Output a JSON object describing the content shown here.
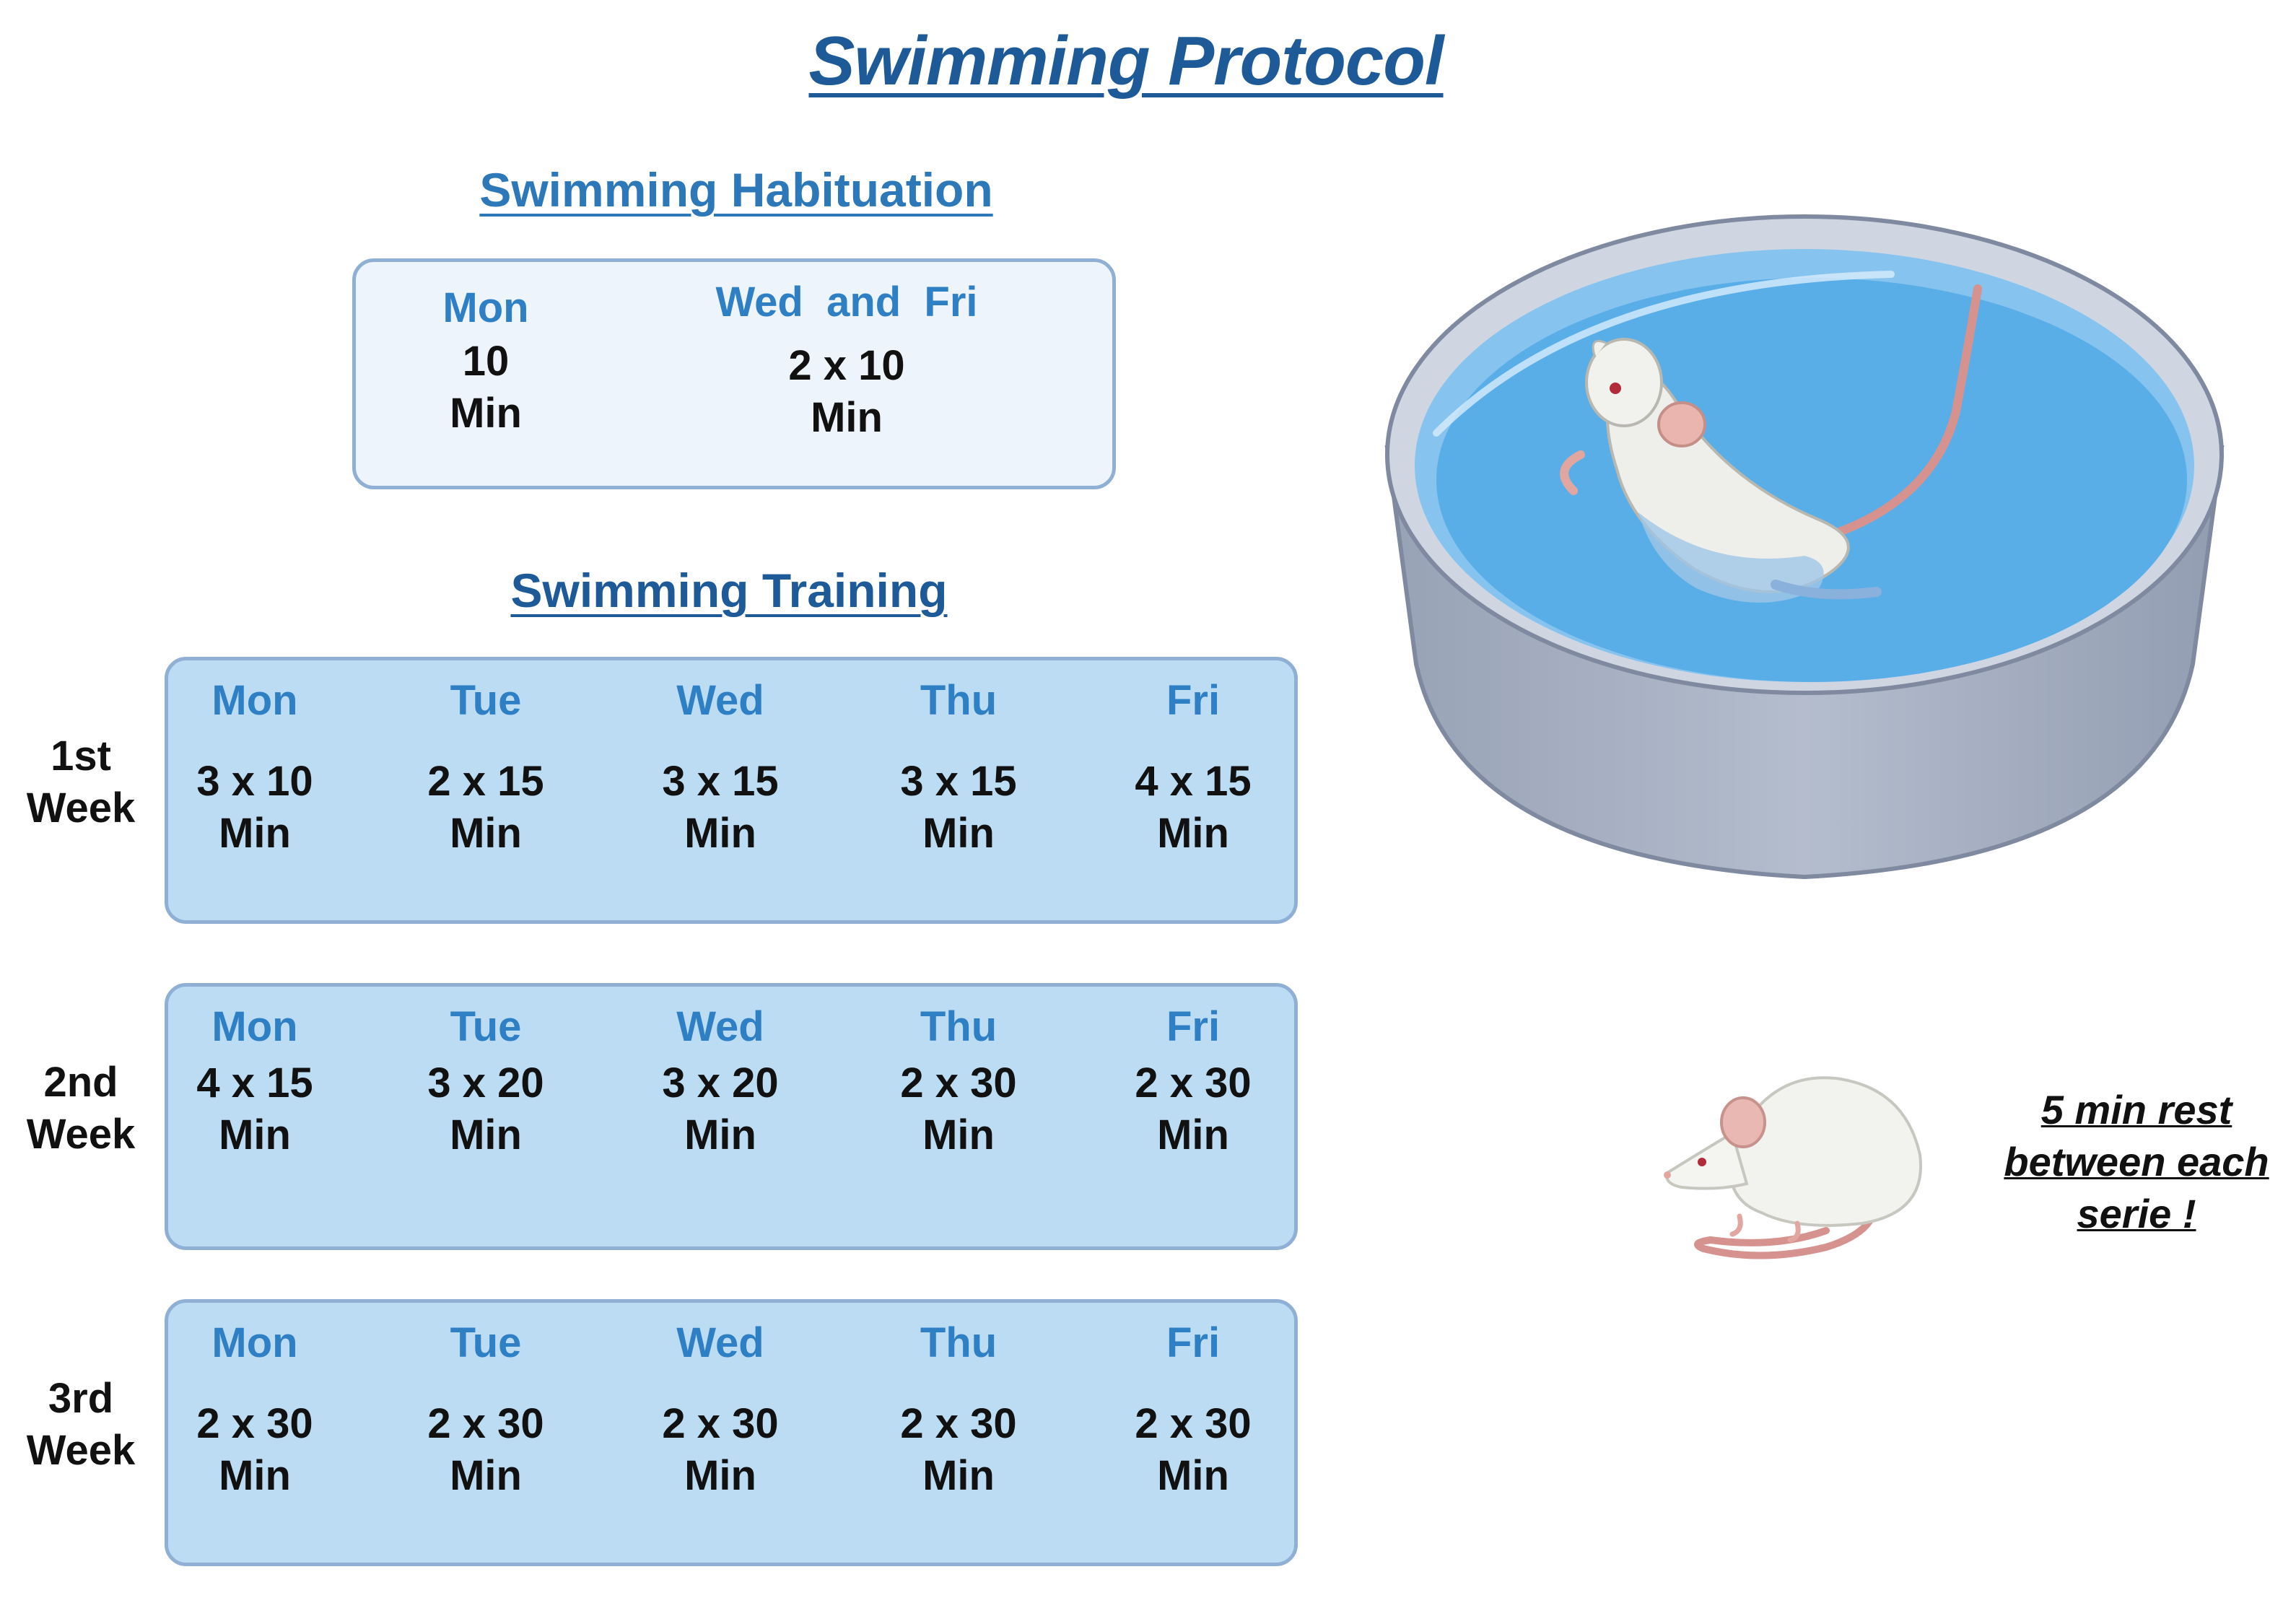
{
  "title": "Swimming Protocol",
  "habituation": {
    "title": "Swimming Habituation",
    "days": [
      {
        "day": "Mon",
        "value_line1": "10",
        "value_line2": "Min"
      },
      {
        "day": "Wed  and  Fri",
        "value_line1": "2 x 10",
        "value_line2": "Min"
      }
    ]
  },
  "training": {
    "title": "Swimming Training",
    "weeks": [
      {
        "label_line1": "1st",
        "label_line2": "Week",
        "days": [
          {
            "day": "Mon",
            "value": "3 x 10",
            "unit": "Min"
          },
          {
            "day": "Tue",
            "value": "2 x 15",
            "unit": "Min"
          },
          {
            "day": "Wed",
            "value": "3 x 15",
            "unit": "Min"
          },
          {
            "day": "Thu",
            "value": "3 x 15",
            "unit": "Min"
          },
          {
            "day": "Fri",
            "value": "4 x 15",
            "unit": "Min"
          }
        ]
      },
      {
        "label_line1": "2nd",
        "label_line2": "Week",
        "days": [
          {
            "day": "Mon",
            "value": "4 x 15",
            "unit": "Min"
          },
          {
            "day": "Tue",
            "value": "3 x 20",
            "unit": "Min"
          },
          {
            "day": "Wed",
            "value": "3 x 20",
            "unit": "Min"
          },
          {
            "day": "Thu",
            "value": "2 x 30",
            "unit": "Min"
          },
          {
            "day": "Fri",
            "value": "2 x 30",
            "unit": "Min"
          }
        ]
      },
      {
        "label_line1": "3rd",
        "label_line2": "Week",
        "days": [
          {
            "day": "Mon",
            "value": "2 x 30",
            "unit": "Min"
          },
          {
            "day": "Tue",
            "value": "2 x 30",
            "unit": "Min"
          },
          {
            "day": "Wed",
            "value": "2 x 30",
            "unit": "Min"
          },
          {
            "day": "Thu",
            "value": "2 x 30",
            "unit": "Min"
          },
          {
            "day": "Fri",
            "value": "2 x 30",
            "unit": "Min"
          }
        ]
      }
    ]
  },
  "rest_note": {
    "line1": "5 min rest",
    "line2": "between each",
    "line3": "serie !"
  },
  "colors": {
    "title": "#1f5a98",
    "day_label": "#2f7fc4",
    "habituation_box": "#edf4fc",
    "week_box": "#bcdcf4",
    "box_border": "#8fb0d4",
    "water": "#5aaee8",
    "pool": "#a9b4c6"
  }
}
